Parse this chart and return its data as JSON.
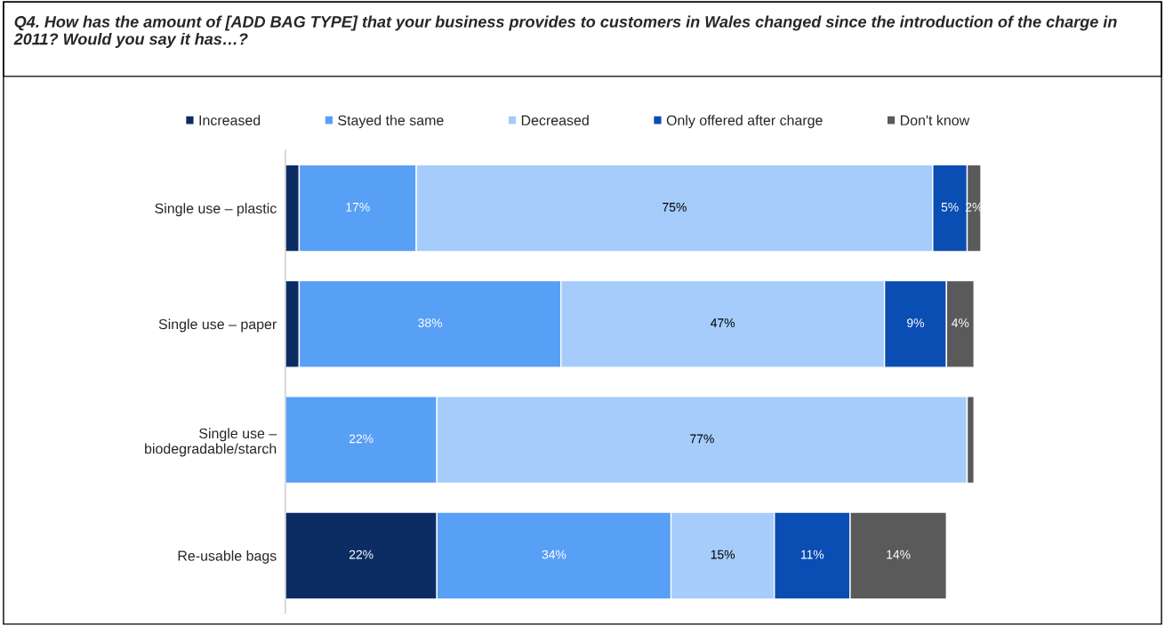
{
  "chart_data": {
    "type": "bar",
    "orientation": "horizontal",
    "stacked": true,
    "title": "Q4. How has the amount of [ADD BAG TYPE] that your business provides to customers in Wales changed since the introduction of the charge in 2011? Would you say it has…?",
    "categories": [
      "Single use – plastic",
      "Single use – paper",
      "Single use –\nbiodegradable/starch",
      "Re-usable bags"
    ],
    "xlim": [
      0,
      101
    ],
    "tick_labels": "y",
    "legend": "top",
    "grid": false,
    "series": [
      {
        "name": "Increased",
        "color": "#0c2d63",
        "values": [
          2,
          2,
          0,
          22
        ],
        "value_labels": [
          null,
          null,
          null,
          "22%"
        ]
      },
      {
        "name": "Stayed the same",
        "color": "#589ff6",
        "values": [
          17,
          38,
          22,
          34
        ],
        "value_labels": [
          "17%",
          "38%",
          "22%",
          "34%"
        ]
      },
      {
        "name": "Decreased",
        "color": "#a5ccfb",
        "values": [
          75,
          47,
          77,
          15
        ],
        "value_labels": [
          "75%",
          "47%",
          "77%",
          "15%"
        ]
      },
      {
        "name": "Only offered after charge",
        "color": "#0a4db3",
        "values": [
          5,
          9,
          0,
          11
        ],
        "value_labels": [
          "5%",
          "9%",
          null,
          "11%"
        ]
      },
      {
        "name": "Don't know",
        "color": "#5a5a5a",
        "values": [
          2,
          4,
          1,
          14
        ],
        "value_labels": [
          "2%",
          "4%",
          null,
          "14%"
        ]
      }
    ]
  }
}
